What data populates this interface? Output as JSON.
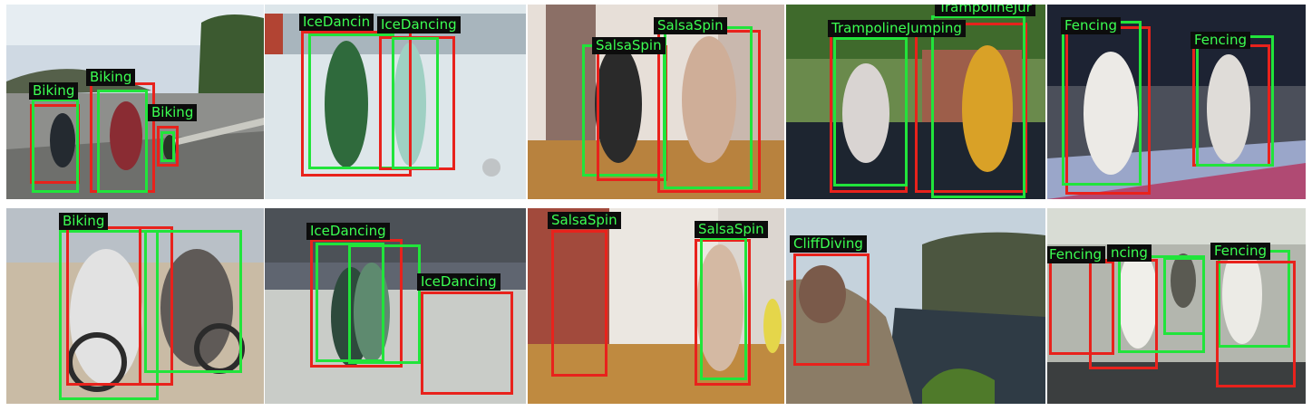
{
  "figure": {
    "description_rows": 2,
    "colors": {
      "ground_truth": "#21e43b",
      "detection": "#e8221c",
      "label_text": "#3cff52",
      "label_bg": "#0c0c0c"
    },
    "rows": [
      {
        "panels": [
          {
            "scene": "road",
            "labels": [
              "Biking",
              "Biking",
              "Biking"
            ]
          },
          {
            "scene": "ice",
            "labels": [
              "IceDancin",
              "IceDancing"
            ]
          },
          {
            "scene": "studio",
            "labels": [
              "SalsaSpin",
              "SalsaSpin"
            ]
          },
          {
            "scene": "yard",
            "labels": [
              "TrampolineJumping",
              "TrampolineJur"
            ]
          },
          {
            "scene": "piste",
            "labels": [
              "Fencing",
              "Fencing"
            ]
          }
        ]
      },
      {
        "panels": [
          {
            "scene": "road2",
            "labels": [
              "Biking"
            ]
          },
          {
            "scene": "ice2",
            "labels": [
              "IceDancing",
              "IceDancing"
            ]
          },
          {
            "scene": "studio2",
            "labels": [
              "SalsaSpin",
              "SalsaSpin"
            ]
          },
          {
            "scene": "cliff",
            "labels": [
              "CliffDiving"
            ]
          },
          {
            "scene": "hall",
            "labels": [
              "Fencing",
              "Fencing",
              "ncing"
            ]
          }
        ]
      }
    ]
  }
}
